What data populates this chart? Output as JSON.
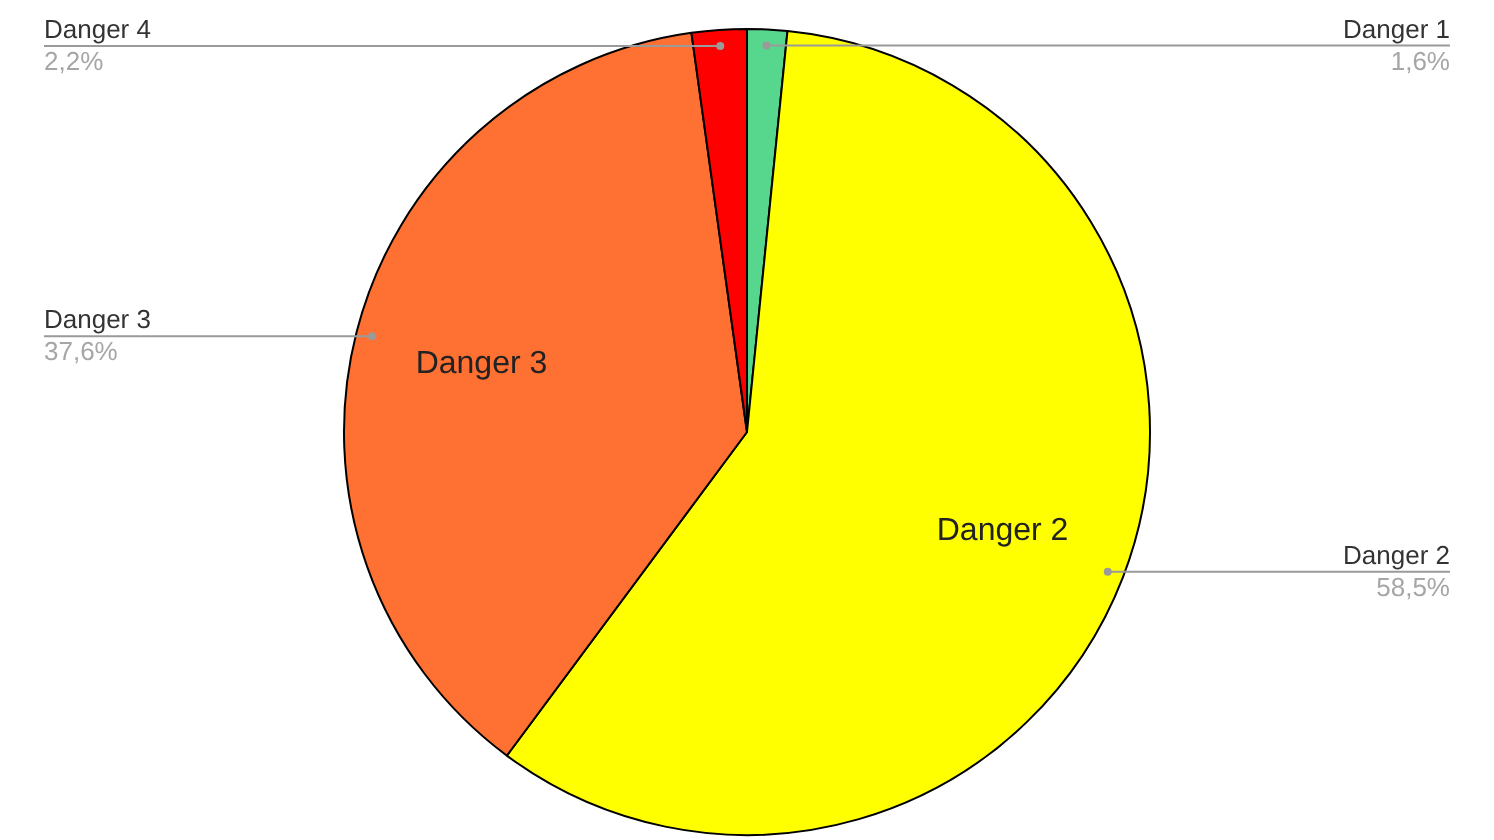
{
  "chart_data": {
    "type": "pie",
    "categories": [
      "Danger 1",
      "Danger 2",
      "Danger 3",
      "Danger 4"
    ],
    "values": [
      1.6,
      58.5,
      37.6,
      2.2
    ],
    "colors": [
      "#57d68d",
      "#ffff00",
      "#ff7033",
      "#ff0000"
    ],
    "value_labels": [
      "1,6%",
      "58,5%",
      "37,6%",
      "2,2%"
    ]
  }
}
